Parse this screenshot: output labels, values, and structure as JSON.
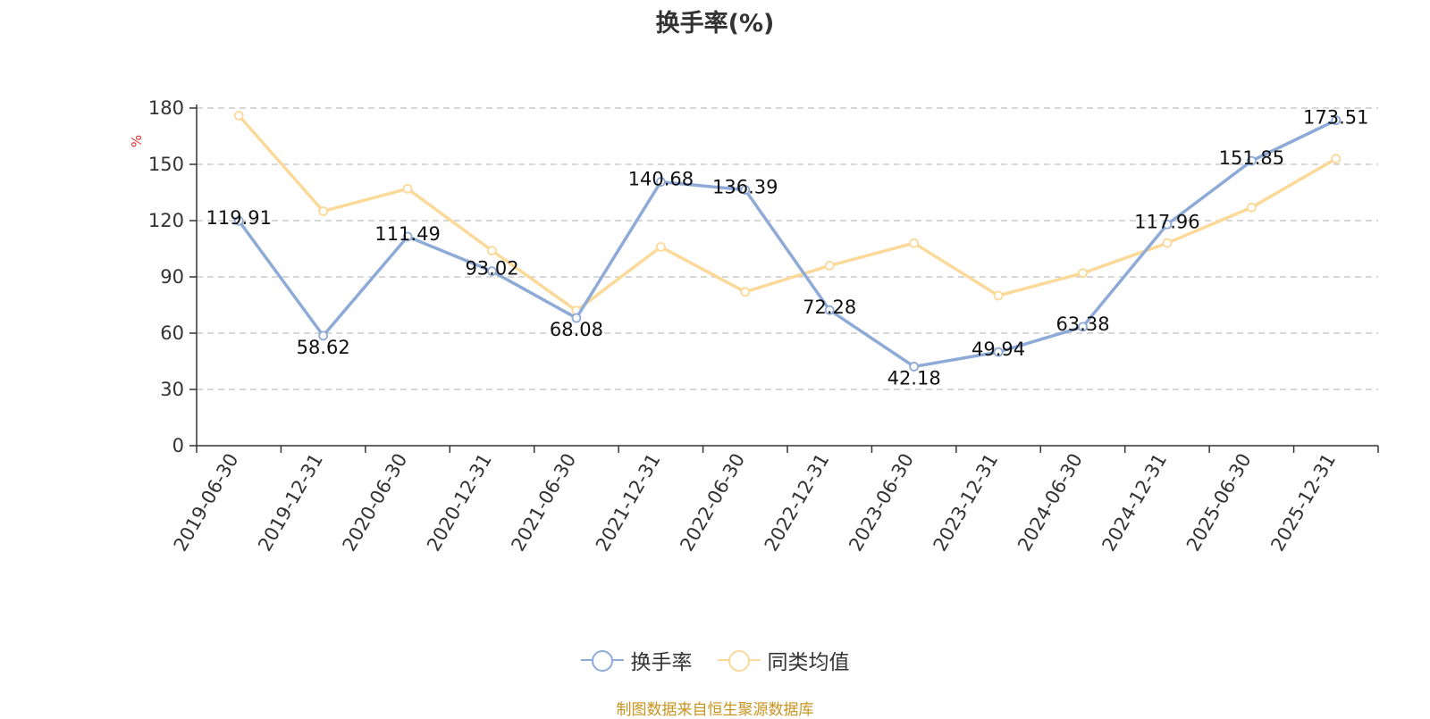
{
  "chart_data": {
    "type": "line",
    "title": "换手率(%)",
    "ylabel": "%",
    "xlabel": "",
    "ylim": [
      0,
      180
    ],
    "yticks": [
      0,
      30,
      60,
      90,
      120,
      150,
      180
    ],
    "grid": true,
    "legend_position": "bottom-center",
    "categories": [
      "2019-06-30",
      "2019-12-31",
      "2020-06-30",
      "2020-12-31",
      "2021-06-30",
      "2021-12-31",
      "2022-06-30",
      "2022-12-31",
      "2023-06-30",
      "2023-12-31",
      "2024-06-30",
      "2024-12-31",
      "2025-06-30",
      "2025-12-31"
    ],
    "series": [
      {
        "name": "换手率",
        "color": "#8eaad6",
        "values": [
          119.91,
          58.62,
          111.49,
          93.02,
          68.08,
          140.68,
          136.39,
          72.28,
          42.18,
          49.94,
          63.38,
          117.96,
          151.85,
          173.51
        ],
        "labels": [
          "119.91",
          "58.62",
          "111.49",
          "93.02",
          "68.08",
          "140.68",
          "136.39",
          "72.28",
          "42.18",
          "49.94",
          "63.38",
          "117.96",
          "151.85",
          "173.51"
        ]
      },
      {
        "name": "同类均值",
        "color": "#fbd999",
        "values": [
          176,
          125,
          137,
          104,
          72,
          106,
          82,
          96,
          108,
          80,
          92,
          108,
          127,
          153
        ]
      }
    ]
  },
  "legend": {
    "item1": "换手率",
    "item2": "同类均值"
  },
  "source": "制图数据来自恒生聚源数据库"
}
